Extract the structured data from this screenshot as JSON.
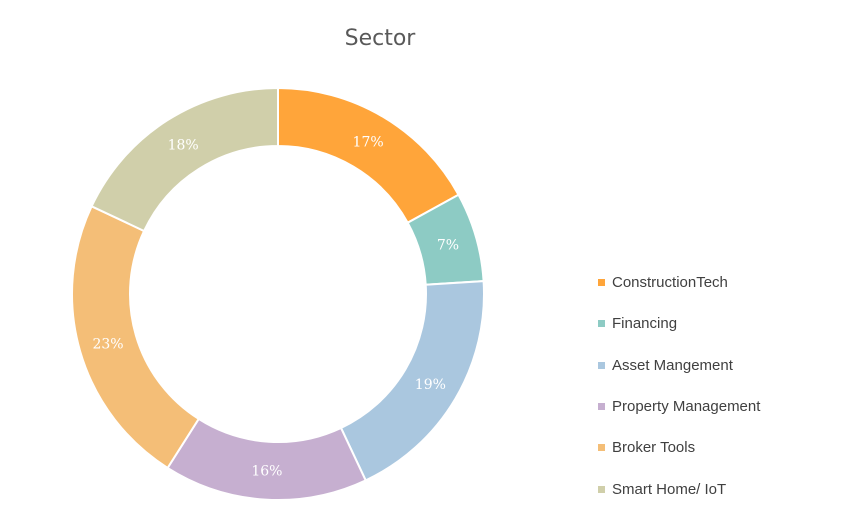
{
  "chart_data": {
    "type": "donut",
    "title": "Sector",
    "categories": [
      "ConstructionTech",
      "Financing",
      "Asset Mangement",
      "Property Management",
      "Broker Tools",
      "Smart Home/ IoT"
    ],
    "values": [
      17,
      7,
      19,
      16,
      23,
      18
    ],
    "labels": [
      "17%",
      "7%",
      "19%",
      "16%",
      "23%",
      "18%"
    ],
    "colors": [
      "#FFA53A",
      "#8DCBC4",
      "#AAC7DF",
      "#C6AFD0",
      "#F4BE77",
      "#D0CFAA"
    ],
    "legend_position": "right"
  }
}
